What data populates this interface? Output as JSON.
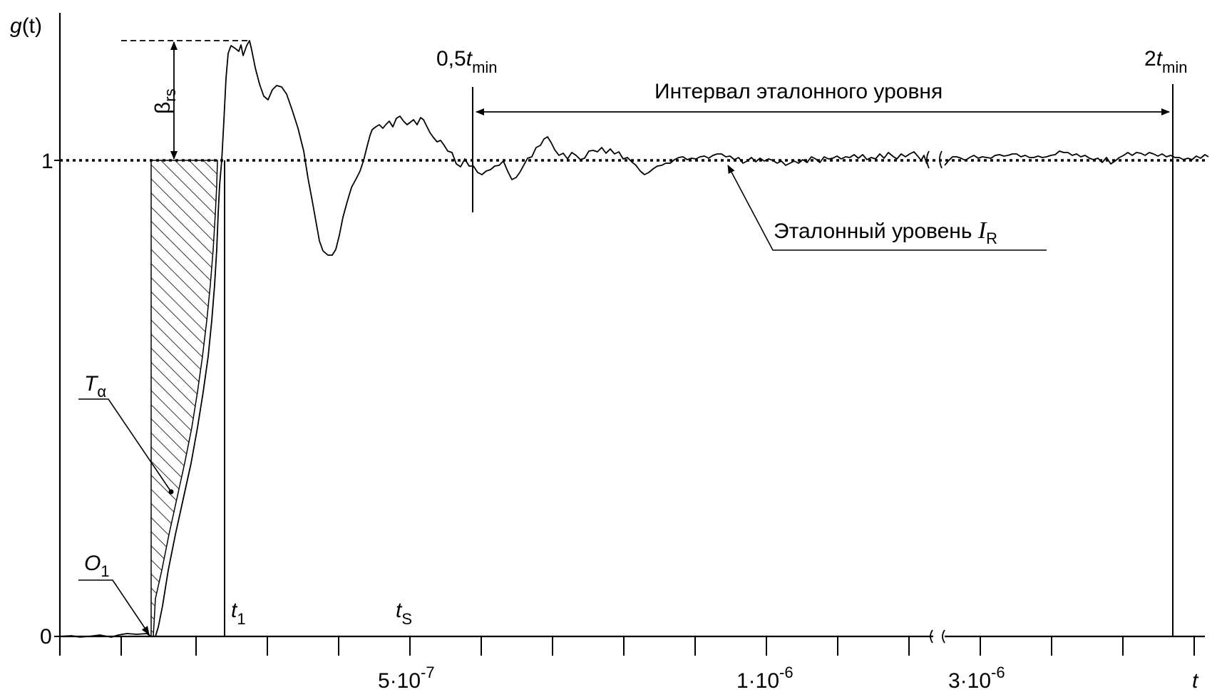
{
  "axes": {
    "y_label_letter": "g",
    "y_label_arg": "(t)",
    "x_label": "t",
    "y_tick_0": "0",
    "y_tick_1": "1",
    "x_tick_a": "5·10",
    "x_tick_a_exp": "-7",
    "x_tick_b": "1·10",
    "x_tick_b_exp": "-6",
    "x_tick_c": "3·10",
    "x_tick_c_exp": "-6"
  },
  "markers": {
    "half_tmin_prefix": "0,5",
    "half_tmin_t": "t",
    "half_tmin_sub": "min",
    "two_tmin_prefix": "2",
    "two_tmin_t": "t",
    "two_tmin_sub": "min",
    "t1_t": "t",
    "t1_sub": "1",
    "ts_t": "t",
    "ts_sub": "S"
  },
  "annotations": {
    "interval_label": "Интервал эталонного уровня",
    "reference_level_text": "Эталонный уровень ",
    "reference_level_symbol": "I",
    "reference_level_sub": "R",
    "beta_symbol": "β",
    "beta_sub": "rs",
    "t_alpha_letter": "T",
    "t_alpha_sub": "α",
    "o1_letter": "O",
    "o1_sub": "1"
  },
  "chart_data": {
    "type": "line",
    "title": "",
    "xlabel": "t",
    "ylabel": "g(t)",
    "y_ticks": [
      0,
      1
    ],
    "x_tick_labels": [
      "5·10^-7",
      "1·10^-6",
      "3·10^-6"
    ],
    "reference_level": 1,
    "overshoot_peak": 1.25,
    "first_undershoot": 0.81,
    "x_axis_break": true,
    "grid": false,
    "legend": "none"
  }
}
